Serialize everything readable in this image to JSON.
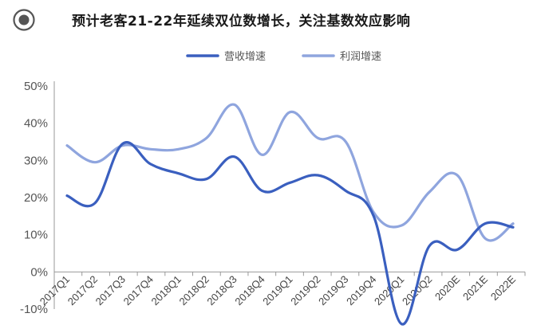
{
  "title": "预计老客21-22年延续双位数增长，关注基数效应影响",
  "chart_data": {
    "type": "line",
    "title": "预计老客21-22年延续双位数增长，关注基数效应影响",
    "categories": [
      "2017Q1",
      "2017Q2",
      "2017Q3",
      "2017Q4",
      "2018Q1",
      "2018Q2",
      "2018Q3",
      "2018Q4",
      "2019Q1",
      "2019Q2",
      "2019Q3",
      "2019Q4",
      "2020Q1",
      "2020Q2",
      "2020E",
      "2021E",
      "2022E"
    ],
    "series": [
      {
        "name": "营收增速",
        "color": "#3a5fbf",
        "values": [
          20.5,
          18.5,
          34.5,
          29,
          26.5,
          25,
          31,
          21.8,
          24,
          26,
          21.8,
          15,
          -14,
          7,
          6,
          13,
          12
        ]
      },
      {
        "name": "利润增速",
        "color": "#8fa5de",
        "values": [
          34,
          29.5,
          34,
          33,
          33,
          36,
          45,
          31.5,
          43,
          36,
          35,
          16,
          12.5,
          21.5,
          26,
          9,
          13
        ]
      }
    ],
    "ylim": [
      -10,
      50
    ],
    "yticks": [
      "-10%",
      "0%",
      "10%",
      "20%",
      "30%",
      "40%",
      "50%"
    ],
    "legend_position": "top-center",
    "grid": false
  }
}
